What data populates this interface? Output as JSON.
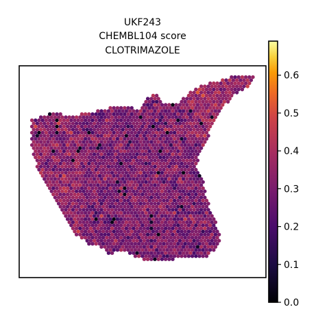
{
  "chart_data": {
    "type": "scatter",
    "title_lines": [
      "UKF243",
      "CHEMBL104 score",
      "CLOTRIMAZOLE"
    ],
    "xlabel": "",
    "ylabel": "",
    "colormap": "inferno",
    "colorbar": {
      "range": [
        0.0,
        0.69
      ],
      "ticks": [
        0.0,
        0.1,
        0.2,
        0.3,
        0.4,
        0.5,
        0.6
      ],
      "tick_labels": [
        "0.0",
        "0.1",
        "0.2",
        "0.3",
        "0.4",
        "0.5",
        "0.6"
      ]
    },
    "grid": false,
    "spot_value_range": [
      0.0,
      0.65
    ],
    "typical_value": 0.3
  }
}
